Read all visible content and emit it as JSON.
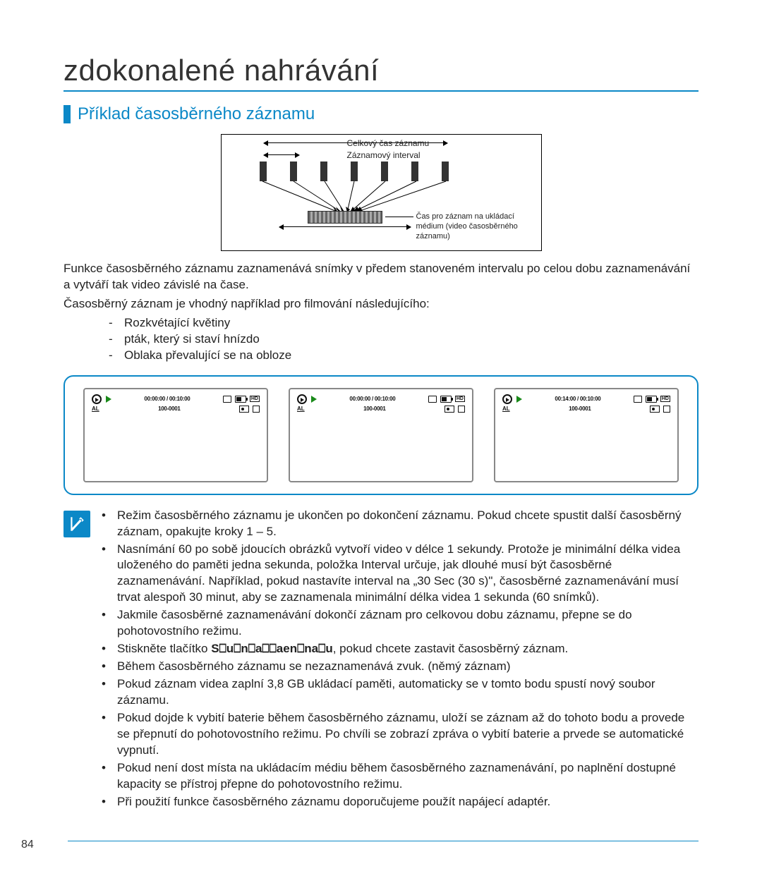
{
  "page_number": "84",
  "colors": {
    "accent": "#0b88c7",
    "text": "#222222",
    "bg": "#ffffff",
    "screen_border": "#888888"
  },
  "title": "zdokonalené nahrávání",
  "subtitle": "Příklad časosběrného záznamu",
  "diagram": {
    "label_total": "Celkový čas záznamu",
    "label_interval": "Záznamový interval",
    "label_storage": "Čas pro záznam na ukládací médium (video časosběrného záznamu)",
    "bar_count": 7
  },
  "intro_lines": [
    "Funkce časosběrného záznamu zaznamenává snímky v předem stanoveném intervalu po celou dobu zaznamenávání a vytváří tak video závislé na čase.",
    "Časosběrný záznam je vhodný například pro filmování následujícího:"
  ],
  "intro_bullets": [
    "Rozkvétající květiny",
    "pták, který si staví hnízdo",
    "Oblaka převalující se na obloze"
  ],
  "screens": [
    {
      "time": "00:00:00 / 00:10:00",
      "file": "100-0001"
    },
    {
      "time": "00:00:00 / 00:10:00",
      "file": "100-0001"
    },
    {
      "time": "00:14:00 / 00:10:00",
      "file": "100-0001"
    }
  ],
  "notes": [
    "Režim časosběrného záznamu je ukončen po dokončení záznamu. Pokud chcete spustit další časosběrný záznam, opakujte kroky 1 – 5.",
    "Nasnímání 60 po sobě jdoucích obrázků vytvoří video v délce 1 sekundy. Protože je minimální délka videa uloženého do paměti jedna sekunda, položka Interval určuje, jak dlouhé musí být časosběrné zaznamenávání. Například, pokud nastavíte interval na „30 Sec (30 s)\", časosběrné zaznamenávání musí trvat alespoň 30 minut, aby se zaznamenala minimální délka videa 1 sekunda (60 snímků).",
    "Jakmile časosběrné zaznamenávání dokončí záznam pro celkovou dobu záznamu, přepne se do pohotovostního režimu.",
    "Stiskněte tlačítko |BTN|, pokud chcete zastavit časosběrný záznam.",
    "Během časosběrného záznamu se nezaznamenává zvuk. (němý záznam)",
    "Pokud záznam videa zaplní 3,8 GB ukládací paměti, automaticky se v tomto bodu spustí nový soubor záznamu.",
    "Pokud dojde k vybití baterie během časosběrného záznamu, uloží se záznam až do tohoto bodu a provede se přepnutí do pohotovostního režimu. Po chvíli se zobrazí zpráva o vybití baterie a prvede se automatické vypnutí.",
    "Pokud není dost místa na ukládacím médiu během časosběrného zaznamenávání, po naplnění dostupné kapacity se přístroj přepne do pohotovostního režimu.",
    "Při použití funkce časosběrného záznamu doporučujeme použít napájecí adaptér."
  ],
  "button_label": "S⎕u⎕n⎕a⎕⎕aen⎕na⎕u"
}
